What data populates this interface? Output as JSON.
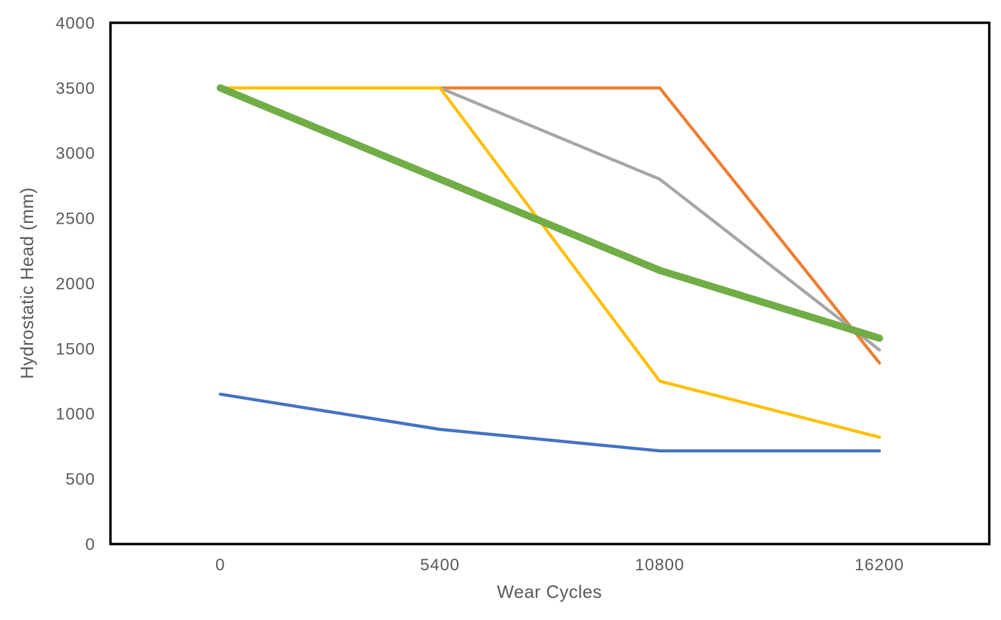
{
  "chart_data": {
    "type": "line",
    "title": "",
    "xlabel": "Wear Cycles",
    "ylabel": "Hydrostatic Head (mm)",
    "categories": [
      "0",
      "5400",
      "10800",
      "16200"
    ],
    "y_ticks": [
      0,
      500,
      1000,
      1500,
      2000,
      2500,
      3000,
      3500,
      4000
    ],
    "ylim": [
      0,
      4000
    ],
    "grid": false,
    "legend_position": "none",
    "axis_color": "#000000",
    "tick_label_color": "#595959",
    "axis_title_color": "#595959",
    "plot_border_width": 3.5,
    "series": [
      {
        "name": "blue-series",
        "color": "#4472C4",
        "stroke_width": 4.5,
        "values": [
          1150,
          880,
          715,
          715
        ]
      },
      {
        "name": "orange-series",
        "color": "#ED7D31",
        "stroke_width": 4.5,
        "values": [
          null,
          3500,
          3500,
          1390
        ]
      },
      {
        "name": "gray-series",
        "color": "#A6A6A6",
        "stroke_width": 4.5,
        "values": [
          null,
          3500,
          2800,
          1490
        ]
      },
      {
        "name": "yellow-series",
        "color": "#FFC000",
        "stroke_width": 4.5,
        "values": [
          3500,
          3500,
          1250,
          820
        ]
      },
      {
        "name": "green-series",
        "color": "#70AD47",
        "stroke_width": 10.5,
        "values": [
          3500,
          2800,
          2100,
          1580
        ]
      }
    ]
  }
}
